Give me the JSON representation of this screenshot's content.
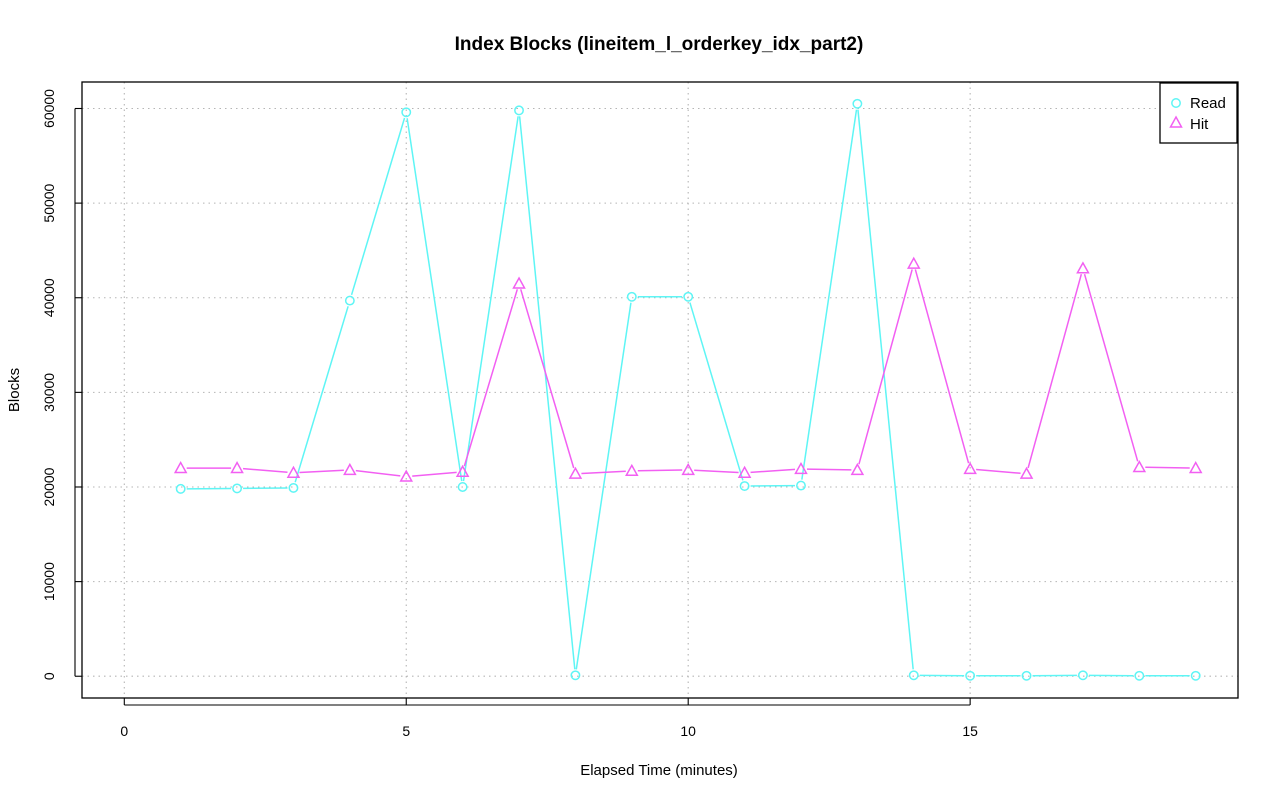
{
  "chart_data": {
    "type": "line",
    "title": "Index Blocks (lineitem_l_orderkey_idx_part2)",
    "xlabel": "Elapsed Time (minutes)",
    "ylabel": "Blocks",
    "xlim": [
      -0.75,
      19.75
    ],
    "ylim": [
      -2300,
      62800
    ],
    "x_ticks": [
      0,
      5,
      10,
      15
    ],
    "y_ticks": [
      0,
      10000,
      20000,
      30000,
      40000,
      50000,
      60000
    ],
    "grid": true,
    "legend_position": "top-right",
    "x": [
      1,
      2,
      3,
      4,
      5,
      6,
      7,
      8,
      9,
      10,
      11,
      12,
      13,
      14,
      15,
      16,
      17,
      18,
      19
    ],
    "series": [
      {
        "name": "Read",
        "color": "#5ef5f5",
        "marker": "circle",
        "values": [
          19800,
          19850,
          19900,
          39700,
          59600,
          20000,
          59800,
          100,
          40100,
          40100,
          20100,
          20150,
          60500,
          100,
          50,
          50,
          100,
          50,
          50
        ]
      },
      {
        "name": "Hit",
        "color": "#f25ff2",
        "marker": "triangle",
        "values": [
          22000,
          22000,
          21500,
          21800,
          21100,
          21600,
          41500,
          21400,
          21700,
          21800,
          21500,
          21900,
          21800,
          43600,
          21900,
          21400,
          43100,
          22100,
          22000
        ]
      }
    ]
  }
}
